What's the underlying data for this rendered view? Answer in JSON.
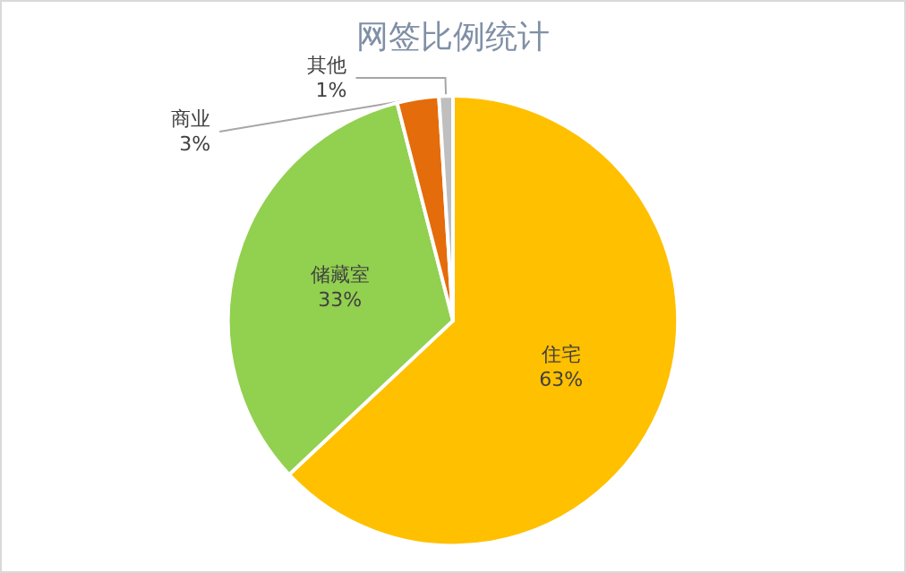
{
  "chart_data": {
    "type": "pie",
    "title": "网签比例统计",
    "categories": [
      "住宅",
      "储藏室",
      "商业",
      "其他"
    ],
    "values": [
      63,
      33,
      3,
      1
    ],
    "colors": [
      "#ffc000",
      "#92d050",
      "#e46c0a",
      "#bfbfbf"
    ],
    "value_labels": [
      "63%",
      "33%",
      "3%",
      "1%"
    ],
    "legend": false
  }
}
